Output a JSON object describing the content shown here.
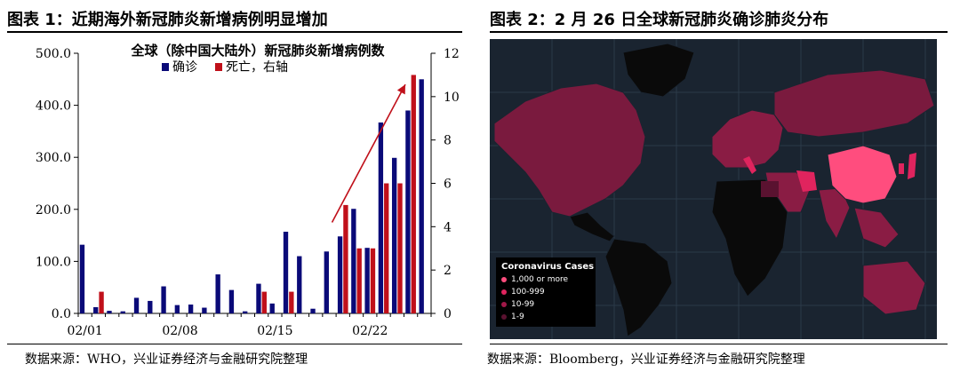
{
  "panel1": {
    "title": "图表 1：近期海外新冠肺炎新增病例明显增加",
    "source": "数据来源：WHO，兴业证券经济与金融研究院整理"
  },
  "panel2": {
    "title": "图表 2：2 月 26 日全球新冠肺炎确诊肺炎分布",
    "source": "数据来源：Bloomberg，兴业证券经济与金融研究院整理",
    "legend": {
      "title": "Coronavirus Cases",
      "items": [
        {
          "label": "1,000 or more",
          "color": "#ff4d7e"
        },
        {
          "label": "100-999",
          "color": "#e0245e"
        },
        {
          "label": "10-99",
          "color": "#a01848"
        },
        {
          "label": "1-9",
          "color": "#5a1230"
        }
      ]
    }
  },
  "colors": {
    "confirmed": "#0a0a78",
    "deaths": "#c0101a",
    "arrow": "#c0101a",
    "map_bg": "#1a2430",
    "map_land_none": "#0a0a0a",
    "map_high": "#ff4d7e",
    "map_mid": "#e0245e",
    "map_low": "#a01848",
    "map_min": "#5a1230"
  },
  "chart_data": {
    "type": "bar",
    "title": "全球（除中国大陆外）新冠肺炎新增病例数",
    "legend": "top-center",
    "y_left": {
      "ylim": [
        0,
        500
      ],
      "ticks": [
        "0.0",
        "100.0",
        "200.0",
        "300.0",
        "400.0",
        "500.0"
      ]
    },
    "y_right": {
      "ylim": [
        0,
        12
      ],
      "ticks": [
        "0",
        "2",
        "4",
        "6",
        "8",
        "10",
        "12"
      ]
    },
    "x_tick_labels": [
      {
        "index": 0,
        "label": "02/01"
      },
      {
        "index": 7,
        "label": "02/08"
      },
      {
        "index": 14,
        "label": "02/15"
      },
      {
        "index": 21,
        "label": "02/22"
      }
    ],
    "categories": [
      "02/01",
      "02/02",
      "02/03",
      "02/04",
      "02/05",
      "02/06",
      "02/07",
      "02/08",
      "02/09",
      "02/10",
      "02/11",
      "02/12",
      "02/13",
      "02/14",
      "02/15",
      "02/16",
      "02/17",
      "02/18",
      "02/19",
      "02/20",
      "02/21",
      "02/22",
      "02/23",
      "02/24",
      "02/25",
      "02/26"
    ],
    "series": [
      {
        "name": "确诊",
        "axis": "left",
        "values": [
          132,
          12,
          5,
          4,
          30,
          24,
          52,
          16,
          17,
          11,
          75,
          45,
          4,
          57,
          19,
          157,
          110,
          9,
          119,
          148,
          201,
          126,
          367,
          299,
          390,
          450
        ]
      },
      {
        "name": "死亡，右轴",
        "axis": "right",
        "values": [
          0,
          1,
          0,
          0,
          0,
          0,
          0,
          0,
          0,
          0,
          0,
          0,
          0,
          1,
          0,
          1,
          0,
          0,
          0,
          5,
          3,
          3,
          6,
          6,
          11,
          0
        ]
      }
    ]
  }
}
